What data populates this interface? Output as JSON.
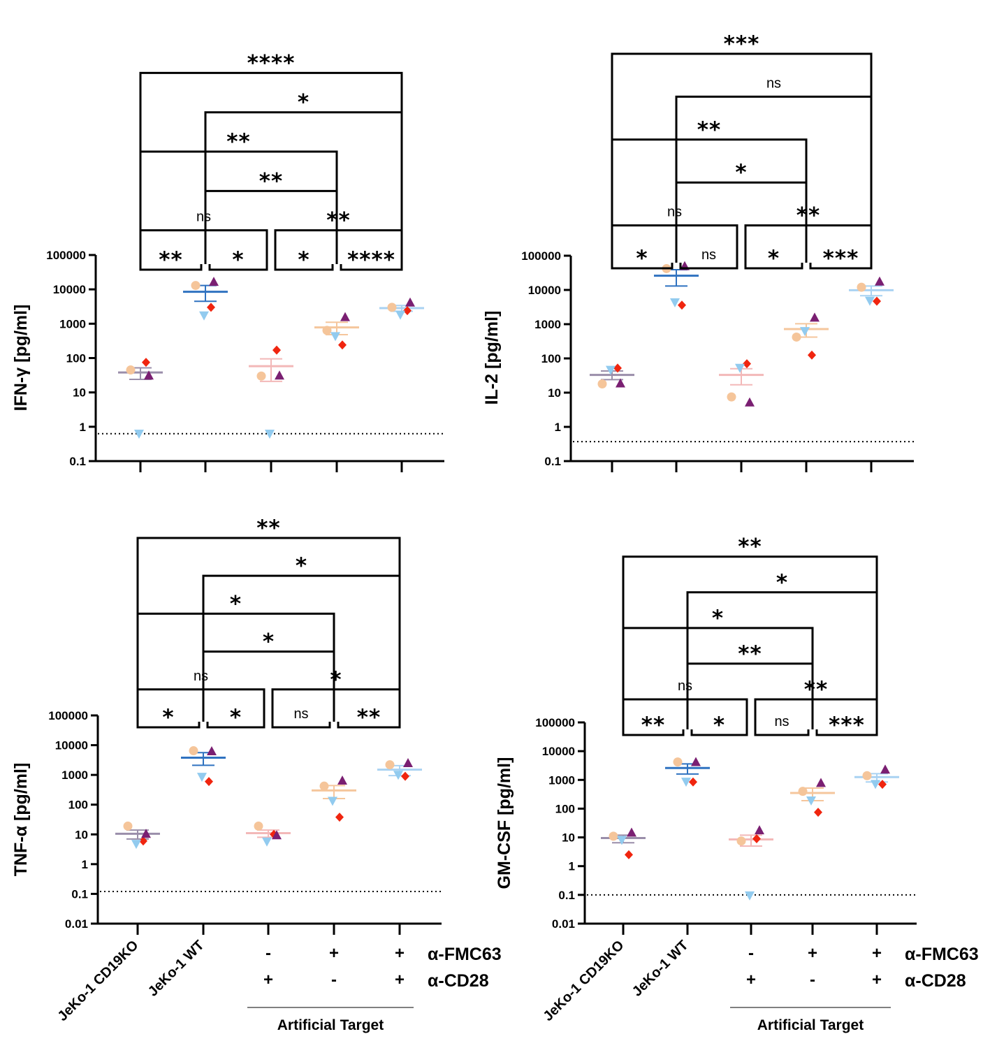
{
  "figure": {
    "categories": [
      "JeKo-1 CD19KO",
      "JeKo-1 WT",
      "Artificial Target (-FMC63/+CD28)",
      "Artificial Target (+FMC63/-CD28)",
      "Artificial Target (+FMC63/+CD28)"
    ],
    "category_labels": [
      "JeKo-1 CD19KO",
      "JeKo-1 WT"
    ],
    "treatment_rows": [
      {
        "label": "α-FMC63",
        "signs": [
          "-",
          "+",
          "+"
        ]
      },
      {
        "label": "α-CD28",
        "signs": [
          "+",
          "-",
          "+"
        ]
      }
    ],
    "group_label": "Artificial Target",
    "colors": {
      "donor_peach": "#f5c59a",
      "donor_red": "#f0250f",
      "donor_purple": "#7a1f72",
      "donor_blue": "#92cbef",
      "mean_lines": [
        "#9a8eaa",
        "#2f72c0",
        "#f3b8b8",
        "#f5c69c",
        "#a9d2f2"
      ]
    },
    "donor_markers": [
      "circle",
      "diamond",
      "triangle-up",
      "triangle-down"
    ]
  },
  "chart_data": [
    {
      "type": "scatter",
      "id": "ifng",
      "ylabel": "IFN-γ [pg/ml]",
      "yscale": "log",
      "ylim": [
        0.1,
        100000
      ],
      "yticks": [
        "0.1",
        "1",
        "10",
        "100",
        "1000",
        "10000",
        "100000"
      ],
      "lod": 0.63,
      "series": [
        {
          "name": "donor-circle",
          "marker": "circle",
          "values": [
            45,
            13000,
            30,
            640,
            3000
          ]
        },
        {
          "name": "donor-diamond",
          "marker": "diamond",
          "values": [
            75,
            3000,
            170,
            240,
            2400
          ]
        },
        {
          "name": "donor-triangle-up",
          "marker": "triangle-up",
          "values": [
            30,
            16000,
            30,
            1500,
            4000
          ]
        },
        {
          "name": "donor-triangle-down",
          "marker": "triangle-down",
          "values": [
            0.65,
            1800,
            0.65,
            450,
            1900
          ]
        }
      ],
      "mean": [
        38,
        8500,
        58,
        780,
        2850
      ],
      "sem": [
        [
          24,
          52
        ],
        [
          4500,
          13000
        ],
        [
          21,
          95
        ],
        [
          480,
          1100
        ],
        [
          2300,
          3400
        ]
      ],
      "comparisons": [
        {
          "pair": [
            0,
            1
          ],
          "label": "**"
        },
        {
          "pair": [
            1,
            2
          ],
          "label": "*"
        },
        {
          "pair": [
            2,
            3
          ],
          "label": "*"
        },
        {
          "pair": [
            3,
            4
          ],
          "label": "****"
        },
        {
          "pair": [
            0,
            2
          ],
          "label": "ns"
        },
        {
          "pair": [
            2,
            4
          ],
          "label": "**"
        },
        {
          "pair": [
            1,
            3
          ],
          "label": "**"
        },
        {
          "pair": [
            0,
            3
          ],
          "label": "**"
        },
        {
          "pair": [
            1,
            4
          ],
          "label": "*"
        },
        {
          "pair": [
            0,
            4
          ],
          "label": "****"
        }
      ]
    },
    {
      "type": "scatter",
      "id": "il2",
      "ylabel": "IL-2 [pg/ml]",
      "yscale": "log",
      "ylim": [
        0.1,
        100000
      ],
      "yticks": [
        "0.1",
        "1",
        "10",
        "100",
        "1000",
        "10000",
        "100000"
      ],
      "lod": 0.37,
      "series": [
        {
          "name": "donor-circle",
          "marker": "circle",
          "values": [
            18,
            42000,
            7.5,
            420,
            12000
          ]
        },
        {
          "name": "donor-diamond",
          "marker": "diamond",
          "values": [
            52,
            3600,
            70,
            125,
            4700
          ]
        },
        {
          "name": "donor-triangle-up",
          "marker": "triangle-up",
          "values": [
            18,
            48000,
            5,
            1500,
            17000
          ]
        },
        {
          "name": "donor-triangle-down",
          "marker": "triangle-down",
          "values": [
            48,
            4500,
            55,
            650,
            5000
          ]
        }
      ],
      "mean": [
        33,
        26000,
        33,
        720,
        9800
      ],
      "sem": [
        [
          24,
          43
        ],
        [
          13000,
          39000
        ],
        [
          17,
          50
        ],
        [
          420,
          1030
        ],
        [
          6800,
          13000
        ]
      ],
      "comparisons": [
        {
          "pair": [
            0,
            1
          ],
          "label": "*"
        },
        {
          "pair": [
            1,
            2
          ],
          "label": "ns"
        },
        {
          "pair": [
            2,
            3
          ],
          "label": "*"
        },
        {
          "pair": [
            3,
            4
          ],
          "label": "***"
        },
        {
          "pair": [
            0,
            2
          ],
          "label": "ns"
        },
        {
          "pair": [
            2,
            4
          ],
          "label": "**"
        },
        {
          "pair": [
            1,
            3
          ],
          "label": "*"
        },
        {
          "pair": [
            0,
            3
          ],
          "label": "**"
        },
        {
          "pair": [
            1,
            4
          ],
          "label": "ns"
        },
        {
          "pair": [
            0,
            4
          ],
          "label": "***"
        }
      ]
    },
    {
      "type": "scatter",
      "id": "tnfa",
      "ylabel": "TNF-α [pg/ml]",
      "yscale": "log",
      "ylim": [
        0.01,
        100000
      ],
      "yticks": [
        "0.01",
        "0.1",
        "1",
        "10",
        "100",
        "1000",
        "10000",
        "100000"
      ],
      "lod": 0.12,
      "series": [
        {
          "name": "donor-circle",
          "marker": "circle",
          "values": [
            19,
            6500,
            19,
            420,
            2200
          ]
        },
        {
          "name": "donor-diamond",
          "marker": "diamond",
          "values": [
            6,
            600,
            10,
            38,
            900
          ]
        },
        {
          "name": "donor-triangle-up",
          "marker": "triangle-up",
          "values": [
            10,
            6000,
            9,
            620,
            2400
          ]
        },
        {
          "name": "donor-triangle-down",
          "marker": "triangle-down",
          "values": [
            5,
            900,
            6,
            140,
            1050
          ]
        }
      ],
      "mean": [
        10.5,
        3800,
        11,
        300,
        1500
      ],
      "sem": [
        [
          7,
          14
        ],
        [
          2100,
          5600
        ],
        [
          8,
          14
        ],
        [
          160,
          440
        ],
        [
          950,
          2050
        ]
      ],
      "comparisons": [
        {
          "pair": [
            0,
            1
          ],
          "label": "*"
        },
        {
          "pair": [
            1,
            2
          ],
          "label": "*"
        },
        {
          "pair": [
            2,
            3
          ],
          "label": "ns"
        },
        {
          "pair": [
            3,
            4
          ],
          "label": "**"
        },
        {
          "pair": [
            0,
            2
          ],
          "label": "ns"
        },
        {
          "pair": [
            2,
            4
          ],
          "label": "*"
        },
        {
          "pair": [
            1,
            3
          ],
          "label": "*"
        },
        {
          "pair": [
            0,
            3
          ],
          "label": "*"
        },
        {
          "pair": [
            1,
            4
          ],
          "label": "*"
        },
        {
          "pair": [
            0,
            4
          ],
          "label": "**"
        }
      ]
    },
    {
      "type": "scatter",
      "id": "gmcsf",
      "ylabel": "GM-CSF [pg/ml]",
      "yscale": "log",
      "ylim": [
        0.01,
        100000
      ],
      "yticks": [
        "0.01",
        "0.1",
        "1",
        "10",
        "100",
        "1000",
        "10000",
        "100000"
      ],
      "lod": 0.1,
      "series": [
        {
          "name": "donor-circle",
          "marker": "circle",
          "values": [
            11,
            4200,
            7.5,
            400,
            1400
          ]
        },
        {
          "name": "donor-diamond",
          "marker": "diamond",
          "values": [
            2.5,
            850,
            9,
            75,
            700
          ]
        },
        {
          "name": "donor-triangle-up",
          "marker": "triangle-up",
          "values": [
            14,
            4000,
            17,
            750,
            2200
          ]
        },
        {
          "name": "donor-triangle-down",
          "marker": "triangle-down",
          "values": [
            8.5,
            900,
            0.1,
            200,
            750
          ]
        }
      ],
      "mean": [
        9.5,
        2600,
        8.5,
        350,
        1250
      ],
      "sem": [
        [
          6.5,
          12
        ],
        [
          1600,
          3600
        ],
        [
          5,
          12
        ],
        [
          190,
          520
        ],
        [
          850,
          1650
        ]
      ],
      "comparisons": [
        {
          "pair": [
            0,
            1
          ],
          "label": "**"
        },
        {
          "pair": [
            1,
            2
          ],
          "label": "*"
        },
        {
          "pair": [
            2,
            3
          ],
          "label": "ns"
        },
        {
          "pair": [
            3,
            4
          ],
          "label": "***"
        },
        {
          "pair": [
            0,
            2
          ],
          "label": "ns"
        },
        {
          "pair": [
            2,
            4
          ],
          "label": "**"
        },
        {
          "pair": [
            1,
            3
          ],
          "label": "**"
        },
        {
          "pair": [
            0,
            3
          ],
          "label": "*"
        },
        {
          "pair": [
            1,
            4
          ],
          "label": "*"
        },
        {
          "pair": [
            0,
            4
          ],
          "label": "**"
        }
      ]
    }
  ]
}
